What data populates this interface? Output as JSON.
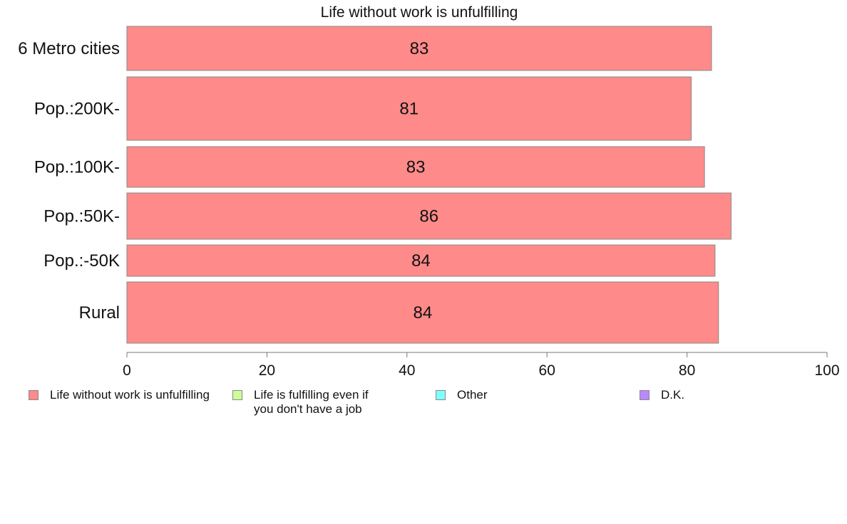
{
  "chart_data": {
    "type": "bar",
    "orientation": "horizontal",
    "stacked": true,
    "title": "Life without work is unfulfilling",
    "categories": [
      "6 Metro cities",
      "Pop.:200K-",
      "Pop.:100K-",
      "Pop.:50K-",
      "Pop.:-50K",
      "Rural"
    ],
    "series": [
      {
        "name": "Life without work is unfulfilling",
        "color": "#ff8a8a",
        "values": [
          83.5,
          80.6,
          82.5,
          86.3,
          84.0,
          84.5
        ],
        "labels": [
          "83",
          "81",
          "83",
          "86",
          "84",
          "84"
        ]
      }
    ],
    "legend": [
      {
        "name": "Life without work is unfulfilling",
        "color": "#ff8a8a"
      },
      {
        "name": "Life is fulfilling even if\nyou don't have a job",
        "color": "#ccff99"
      },
      {
        "name": "Other",
        "color": "#80ffff"
      },
      {
        "name": "D.K.",
        "color": "#bb88ff"
      }
    ],
    "xlim": [
      0,
      100
    ],
    "xticks": [
      "0",
      "20",
      "40",
      "60",
      "80",
      "100"
    ],
    "grid": false,
    "legend_position": "bottom"
  }
}
